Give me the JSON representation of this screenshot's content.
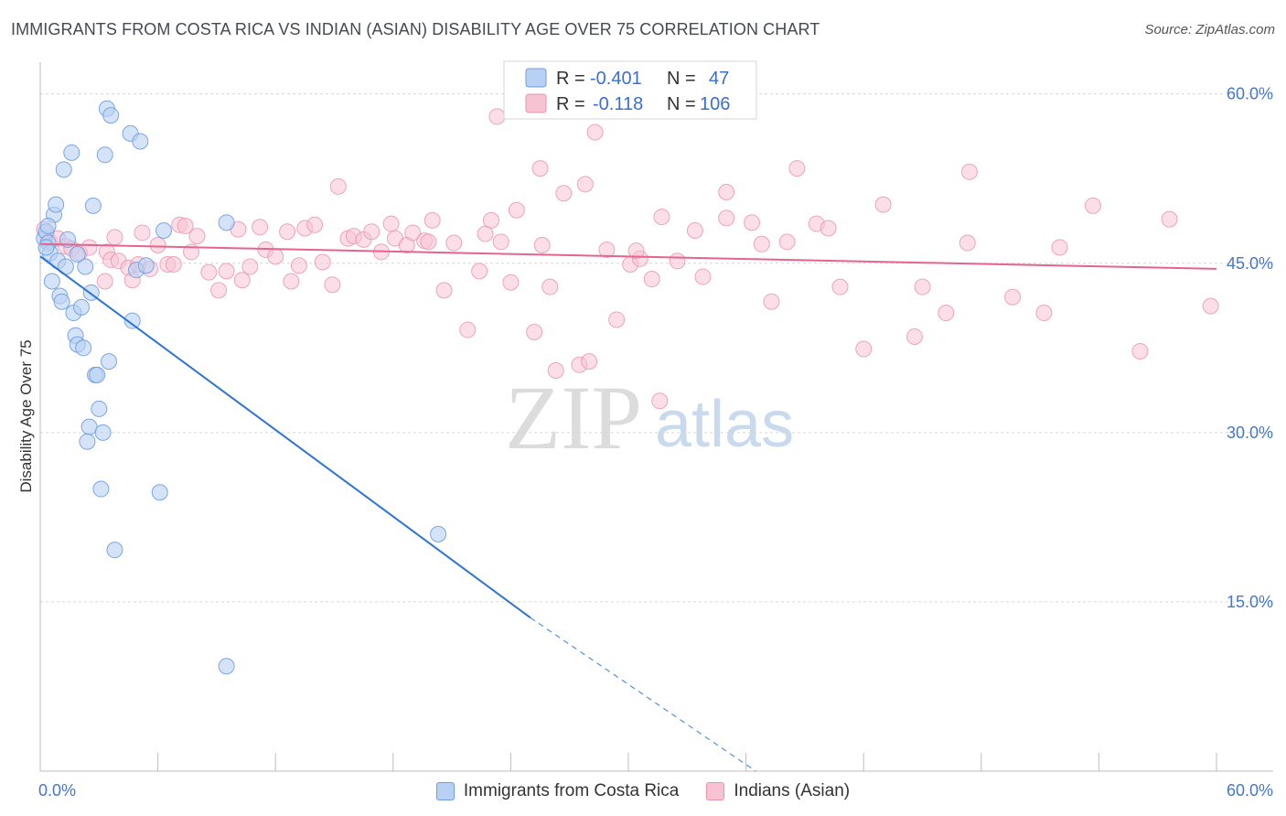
{
  "title": "IMMIGRANTS FROM COSTA RICA VS INDIAN (ASIAN) DISABILITY AGE OVER 75 CORRELATION CHART",
  "source": "Source: ZipAtlas.com",
  "watermark": {
    "zip": "ZIP",
    "atlas": "atlas"
  },
  "colors": {
    "blue_fill": "#b7d0f3",
    "blue_stroke": "#6f9ee0",
    "blue_line": "#2d74d6",
    "pink_fill": "#f7c3d3",
    "pink_stroke": "#e892b0",
    "pink_line": "#e3658d",
    "grid": "#d6d6d6",
    "accent_text": "#4477cc"
  },
  "legend": {
    "rows": [
      {
        "r_label": "R =",
        "r_value": "-0.401",
        "n_label": "N =",
        "n_value": "47"
      },
      {
        "r_label": "R =",
        "r_value": "-0.118",
        "n_label": "N =",
        "n_value": "106"
      }
    ]
  },
  "bottom_legend": {
    "items": [
      {
        "label": "Immigrants from Costa Rica"
      },
      {
        "label": "Indians (Asian)"
      }
    ]
  },
  "chart_data": {
    "type": "scatter",
    "ylabel": "Disability Age Over 75",
    "xlim": [
      0,
      60
    ],
    "ylim": [
      0,
      62
    ],
    "x_tick_labels": [
      "0.0%",
      "60.0%"
    ],
    "y_ticks": [
      15,
      30,
      45,
      60
    ],
    "y_tick_labels": [
      "15.0%",
      "30.0%",
      "45.0%",
      "60.0%"
    ],
    "grid": true,
    "legend_position": "top-center",
    "series": [
      {
        "name": "Immigrants from Costa Rica",
        "color": "#6f9ee0",
        "trend": {
          "x0": 0,
          "y0": 45.6,
          "x1": 25,
          "y1": 13.6,
          "dashed_to_x": 36.5
        },
        "points": [
          [
            0.2,
            47.2
          ],
          [
            0.3,
            47.8
          ],
          [
            0.4,
            46.8
          ],
          [
            0.5,
            45.9
          ],
          [
            0.6,
            43.4
          ],
          [
            0.7,
            49.3
          ],
          [
            0.8,
            50.2
          ],
          [
            0.9,
            45.2
          ],
          [
            1.0,
            42.1
          ],
          [
            1.1,
            41.6
          ],
          [
            1.2,
            53.3
          ],
          [
            1.3,
            44.7
          ],
          [
            1.6,
            54.8
          ],
          [
            1.7,
            40.6
          ],
          [
            1.8,
            38.6
          ],
          [
            1.9,
            37.8
          ],
          [
            2.1,
            41.1
          ],
          [
            2.2,
            37.5
          ],
          [
            2.3,
            44.7
          ],
          [
            2.5,
            30.5
          ],
          [
            2.4,
            29.2
          ],
          [
            2.6,
            42.4
          ],
          [
            2.7,
            50.1
          ],
          [
            2.8,
            35.1
          ],
          [
            2.9,
            35.1
          ],
          [
            3.0,
            32.1
          ],
          [
            3.1,
            25.0
          ],
          [
            3.2,
            30.0
          ],
          [
            3.3,
            54.6
          ],
          [
            3.4,
            58.7
          ],
          [
            3.5,
            36.3
          ],
          [
            3.6,
            58.1
          ],
          [
            3.8,
            19.6
          ],
          [
            4.6,
            56.5
          ],
          [
            4.7,
            39.9
          ],
          [
            4.9,
            44.4
          ],
          [
            5.1,
            55.8
          ],
          [
            5.4,
            44.8
          ],
          [
            6.1,
            24.7
          ],
          [
            6.3,
            47.9
          ],
          [
            9.5,
            48.6
          ],
          [
            9.5,
            9.3
          ],
          [
            20.3,
            21.0
          ],
          [
            0.4,
            48.3
          ],
          [
            1.4,
            47.1
          ],
          [
            1.9,
            45.8
          ],
          [
            0.3,
            46.4
          ]
        ]
      },
      {
        "name": "Indians (Asian)",
        "color": "#e892b0",
        "trend": {
          "x0": 0,
          "y0": 46.7,
          "x1": 60,
          "y1": 44.5
        },
        "points": [
          [
            0.2,
            48.0
          ],
          [
            0.5,
            46.9
          ],
          [
            0.9,
            47.2
          ],
          [
            1.3,
            46.5
          ],
          [
            1.6,
            46.3
          ],
          [
            2.0,
            45.9
          ],
          [
            2.5,
            46.4
          ],
          [
            3.3,
            43.4
          ],
          [
            3.4,
            46.0
          ],
          [
            3.6,
            45.3
          ],
          [
            3.8,
            47.3
          ],
          [
            4.0,
            45.2
          ],
          [
            4.5,
            44.6
          ],
          [
            4.7,
            43.5
          ],
          [
            5.0,
            44.9
          ],
          [
            5.2,
            47.7
          ],
          [
            5.6,
            44.5
          ],
          [
            6.0,
            46.6
          ],
          [
            6.5,
            44.9
          ],
          [
            6.8,
            44.9
          ],
          [
            7.1,
            48.4
          ],
          [
            7.4,
            48.3
          ],
          [
            7.7,
            46.0
          ],
          [
            8.0,
            47.4
          ],
          [
            8.6,
            44.2
          ],
          [
            9.1,
            42.6
          ],
          [
            9.5,
            44.3
          ],
          [
            10.1,
            48.0
          ],
          [
            10.3,
            43.5
          ],
          [
            10.7,
            44.7
          ],
          [
            11.2,
            48.2
          ],
          [
            11.5,
            46.2
          ],
          [
            12.0,
            45.6
          ],
          [
            12.6,
            47.8
          ],
          [
            12.8,
            43.4
          ],
          [
            13.2,
            44.8
          ],
          [
            13.5,
            48.1
          ],
          [
            14.0,
            48.4
          ],
          [
            14.4,
            45.1
          ],
          [
            14.9,
            43.1
          ],
          [
            15.2,
            51.8
          ],
          [
            15.7,
            47.2
          ],
          [
            16.0,
            47.4
          ],
          [
            16.5,
            47.1
          ],
          [
            16.9,
            47.8
          ],
          [
            17.4,
            46.0
          ],
          [
            17.9,
            48.5
          ],
          [
            18.1,
            47.2
          ],
          [
            18.7,
            46.6
          ],
          [
            19.0,
            47.7
          ],
          [
            19.6,
            47.0
          ],
          [
            20.0,
            48.8
          ],
          [
            20.6,
            42.6
          ],
          [
            21.1,
            46.8
          ],
          [
            21.8,
            39.1
          ],
          [
            22.4,
            44.3
          ],
          [
            22.7,
            47.6
          ],
          [
            23.0,
            48.8
          ],
          [
            23.5,
            46.9
          ],
          [
            24.0,
            43.3
          ],
          [
            24.3,
            49.7
          ],
          [
            25.2,
            38.9
          ],
          [
            25.5,
            53.4
          ],
          [
            26.0,
            42.9
          ],
          [
            26.3,
            35.5
          ],
          [
            26.7,
            51.2
          ],
          [
            27.5,
            36.0
          ],
          [
            28.0,
            36.3
          ],
          [
            28.3,
            56.6
          ],
          [
            28.9,
            46.2
          ],
          [
            29.4,
            40.0
          ],
          [
            30.1,
            44.9
          ],
          [
            30.6,
            45.4
          ],
          [
            31.2,
            43.6
          ],
          [
            31.6,
            32.8
          ],
          [
            32.5,
            45.2
          ],
          [
            33.4,
            47.9
          ],
          [
            33.8,
            43.8
          ],
          [
            35.0,
            51.3
          ],
          [
            35.0,
            49.0
          ],
          [
            36.3,
            48.6
          ],
          [
            36.8,
            46.7
          ],
          [
            37.3,
            41.6
          ],
          [
            38.1,
            46.9
          ],
          [
            38.6,
            53.4
          ],
          [
            39.6,
            48.5
          ],
          [
            40.2,
            48.1
          ],
          [
            40.8,
            42.9
          ],
          [
            42.0,
            37.4
          ],
          [
            43.0,
            50.2
          ],
          [
            44.6,
            38.5
          ],
          [
            45.0,
            42.9
          ],
          [
            46.2,
            40.6
          ],
          [
            47.3,
            46.8
          ],
          [
            47.4,
            53.1
          ],
          [
            49.6,
            42.0
          ],
          [
            51.2,
            40.6
          ],
          [
            52.0,
            46.4
          ],
          [
            53.7,
            50.1
          ],
          [
            56.1,
            37.2
          ],
          [
            57.6,
            48.9
          ],
          [
            59.7,
            41.2
          ],
          [
            23.3,
            58.0
          ],
          [
            27.8,
            52.0
          ],
          [
            19.8,
            46.9
          ],
          [
            31.7,
            49.1
          ],
          [
            30.4,
            46.1
          ],
          [
            25.6,
            46.6
          ]
        ]
      }
    ]
  }
}
